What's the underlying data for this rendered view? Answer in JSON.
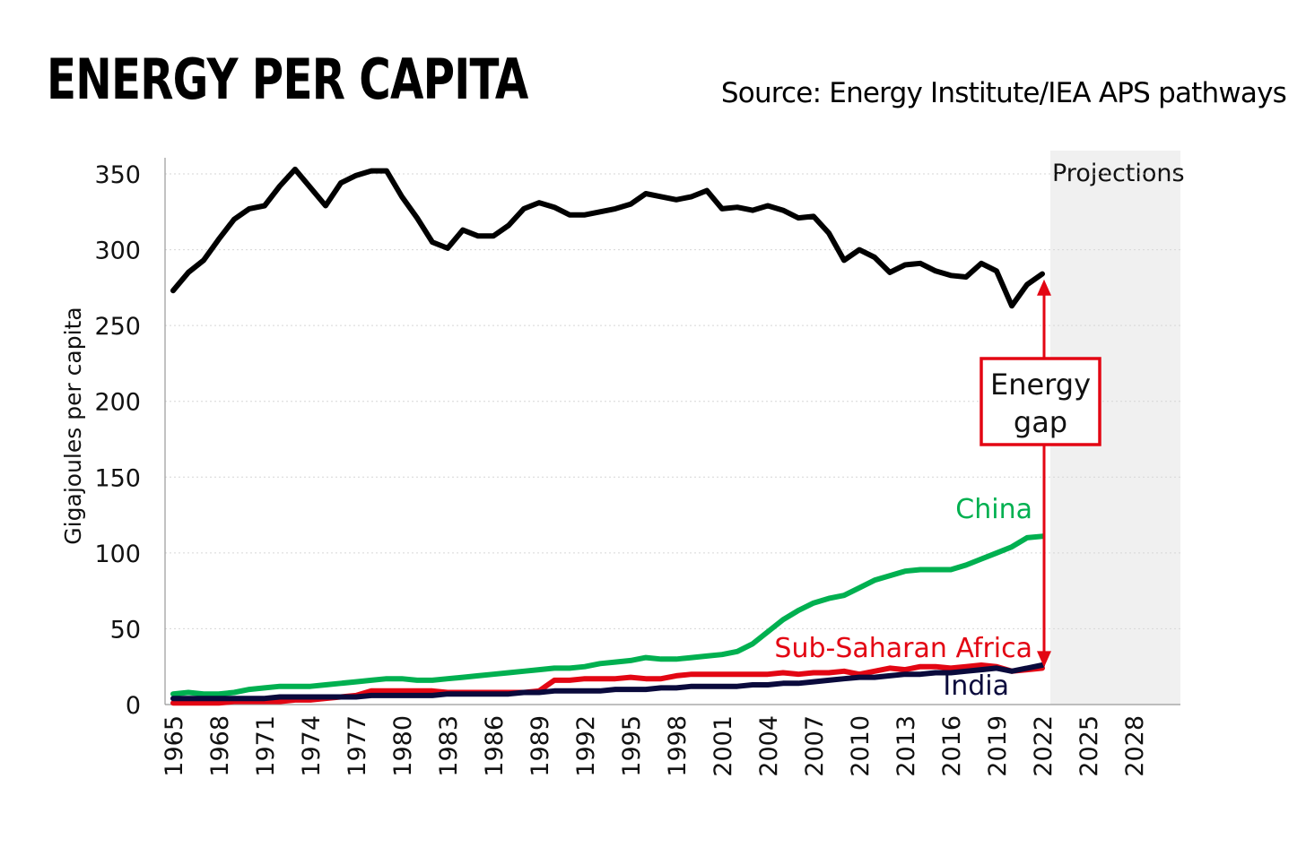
{
  "header": {
    "title": "ENERGY PER CAPITA",
    "source": "Source: Energy Institute/IEA APS pathways"
  },
  "chart_data": {
    "type": "line",
    "title": "ENERGY PER CAPITA",
    "xlabel": "",
    "ylabel": "Gigajoules per capita",
    "ylim": [
      0,
      350
    ],
    "yticks": [
      0,
      50,
      100,
      150,
      200,
      250,
      300,
      350
    ],
    "xlim": [
      1965,
      2030
    ],
    "xticks": [
      "1965",
      "1968",
      "1971",
      "1974",
      "1977",
      "1980",
      "1983",
      "1986",
      "1989",
      "1992",
      "1995",
      "1998",
      "2001",
      "2004",
      "2007",
      "2010",
      "2013",
      "2016",
      "2019",
      "2022",
      "2025",
      "2028"
    ],
    "grid": "horizontal dotted",
    "projection_region": {
      "label": "Projections",
      "from": 2023,
      "to": 2030
    },
    "annotation": {
      "label_line1": "Energy",
      "label_line2": "gap",
      "x": 2022,
      "from_y": 27,
      "to_y": 278
    },
    "series": [
      {
        "key": "world",
        "name": "",
        "color": "#000000",
        "x": [
          1965,
          1966,
          1967,
          1968,
          1969,
          1970,
          1971,
          1972,
          1973,
          1974,
          1975,
          1976,
          1977,
          1978,
          1979,
          1980,
          1981,
          1982,
          1983,
          1984,
          1985,
          1986,
          1987,
          1988,
          1989,
          1990,
          1991,
          1992,
          1993,
          1994,
          1995,
          1996,
          1997,
          1998,
          1999,
          2000,
          2001,
          2002,
          2003,
          2004,
          2005,
          2006,
          2007,
          2008,
          2009,
          2010,
          2011,
          2012,
          2013,
          2014,
          2015,
          2016,
          2017,
          2018,
          2019,
          2020,
          2021,
          2022
        ],
        "values": [
          273,
          285,
          293,
          307,
          320,
          327,
          329,
          342,
          353,
          341,
          329,
          344,
          349,
          352,
          352,
          335,
          321,
          305,
          301,
          313,
          309,
          309,
          316,
          327,
          331,
          328,
          323,
          323,
          325,
          327,
          330,
          337,
          335,
          333,
          335,
          339,
          327,
          328,
          326,
          329,
          326,
          321,
          322,
          311,
          293,
          300,
          295,
          285,
          290,
          291,
          286,
          283,
          282,
          291,
          286,
          263,
          277,
          284
        ]
      },
      {
        "key": "china",
        "name": "China",
        "color": "#00b050",
        "x": [
          1965,
          1966,
          1967,
          1968,
          1969,
          1970,
          1971,
          1972,
          1973,
          1974,
          1975,
          1976,
          1977,
          1978,
          1979,
          1980,
          1981,
          1982,
          1983,
          1984,
          1985,
          1986,
          1987,
          1988,
          1989,
          1990,
          1991,
          1992,
          1993,
          1994,
          1995,
          1996,
          1997,
          1998,
          1999,
          2000,
          2001,
          2002,
          2003,
          2004,
          2005,
          2006,
          2007,
          2008,
          2009,
          2010,
          2011,
          2012,
          2013,
          2014,
          2015,
          2016,
          2017,
          2018,
          2019,
          2020,
          2021,
          2022
        ],
        "values": [
          7,
          8,
          7,
          7,
          8,
          10,
          11,
          12,
          12,
          12,
          13,
          14,
          15,
          16,
          17,
          17,
          16,
          16,
          17,
          18,
          19,
          20,
          21,
          22,
          23,
          24,
          24,
          25,
          27,
          28,
          29,
          31,
          30,
          30,
          31,
          32,
          33,
          35,
          40,
          48,
          56,
          62,
          67,
          70,
          72,
          77,
          82,
          85,
          88,
          89,
          89,
          89,
          92,
          96,
          100,
          104,
          110,
          111
        ]
      },
      {
        "key": "ssa",
        "name": "Sub-Saharan Africa",
        "color": "#e30613",
        "x": [
          1965,
          1966,
          1967,
          1968,
          1969,
          1970,
          1971,
          1972,
          1973,
          1974,
          1975,
          1976,
          1977,
          1978,
          1979,
          1980,
          1981,
          1982,
          1983,
          1984,
          1985,
          1986,
          1987,
          1988,
          1989,
          1990,
          1991,
          1992,
          1993,
          1994,
          1995,
          1996,
          1997,
          1998,
          1999,
          2000,
          2001,
          2002,
          2003,
          2004,
          2005,
          2006,
          2007,
          2008,
          2009,
          2010,
          2011,
          2012,
          2013,
          2014,
          2015,
          2016,
          2017,
          2018,
          2019,
          2020,
          2021,
          2022
        ],
        "values": [
          1,
          1,
          1,
          1,
          2,
          2,
          2,
          2,
          3,
          3,
          4,
          5,
          6,
          9,
          9,
          9,
          9,
          9,
          8,
          8,
          8,
          8,
          8,
          8,
          9,
          16,
          16,
          17,
          17,
          17,
          18,
          17,
          17,
          19,
          20,
          20,
          20,
          20,
          20,
          20,
          21,
          20,
          21,
          21,
          22,
          20,
          22,
          24,
          23,
          25,
          25,
          24,
          25,
          26,
          25,
          22,
          23,
          24
        ]
      },
      {
        "key": "india",
        "name": "India",
        "color": "#0a0a3c",
        "x": [
          1965,
          1966,
          1967,
          1968,
          1969,
          1970,
          1971,
          1972,
          1973,
          1974,
          1975,
          1976,
          1977,
          1978,
          1979,
          1980,
          1981,
          1982,
          1983,
          1984,
          1985,
          1986,
          1987,
          1988,
          1989,
          1990,
          1991,
          1992,
          1993,
          1994,
          1995,
          1996,
          1997,
          1998,
          1999,
          2000,
          2001,
          2002,
          2003,
          2004,
          2005,
          2006,
          2007,
          2008,
          2009,
          2010,
          2011,
          2012,
          2013,
          2014,
          2015,
          2016,
          2017,
          2018,
          2019,
          2020,
          2021,
          2022
        ],
        "values": [
          4,
          4,
          4,
          4,
          4,
          4,
          4,
          5,
          5,
          5,
          5,
          5,
          5,
          6,
          6,
          6,
          6,
          6,
          7,
          7,
          7,
          7,
          7,
          8,
          8,
          9,
          9,
          9,
          9,
          10,
          10,
          10,
          11,
          11,
          12,
          12,
          12,
          12,
          13,
          13,
          14,
          14,
          15,
          16,
          17,
          18,
          18,
          19,
          20,
          20,
          21,
          21,
          22,
          23,
          24,
          22,
          24,
          26
        ]
      }
    ]
  }
}
